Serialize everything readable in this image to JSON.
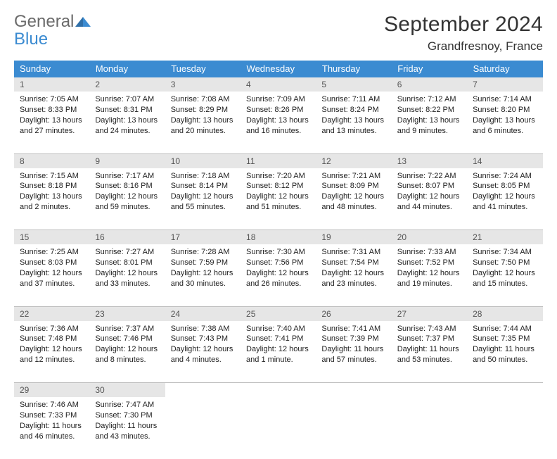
{
  "logo": {
    "line1": "General",
    "line2": "Blue"
  },
  "title": "September 2024",
  "location": "Grandfresnoy, France",
  "weekdays": [
    "Sunday",
    "Monday",
    "Tuesday",
    "Wednesday",
    "Thursday",
    "Friday",
    "Saturday"
  ],
  "colors": {
    "header_bg": "#3b8bd1",
    "header_fg": "#ffffff",
    "daynum_bg": "#e6e6e6",
    "grid_line": "#bfbfbf",
    "text": "#222222",
    "page_bg": "#ffffff"
  },
  "typography": {
    "title_pt": 30,
    "location_pt": 17,
    "weekday_pt": 13,
    "daynum_pt": 12,
    "body_pt": 11,
    "font_family": "Arial"
  },
  "layout": {
    "cols": 7,
    "rows": 5,
    "first_weekday_index": 0,
    "trailing_empty_cells": 5
  },
  "days": [
    {
      "n": 1,
      "sunrise": "7:05 AM",
      "sunset": "8:33 PM",
      "daylight": "13 hours and 27 minutes."
    },
    {
      "n": 2,
      "sunrise": "7:07 AM",
      "sunset": "8:31 PM",
      "daylight": "13 hours and 24 minutes."
    },
    {
      "n": 3,
      "sunrise": "7:08 AM",
      "sunset": "8:29 PM",
      "daylight": "13 hours and 20 minutes."
    },
    {
      "n": 4,
      "sunrise": "7:09 AM",
      "sunset": "8:26 PM",
      "daylight": "13 hours and 16 minutes."
    },
    {
      "n": 5,
      "sunrise": "7:11 AM",
      "sunset": "8:24 PM",
      "daylight": "13 hours and 13 minutes."
    },
    {
      "n": 6,
      "sunrise": "7:12 AM",
      "sunset": "8:22 PM",
      "daylight": "13 hours and 9 minutes."
    },
    {
      "n": 7,
      "sunrise": "7:14 AM",
      "sunset": "8:20 PM",
      "daylight": "13 hours and 6 minutes."
    },
    {
      "n": 8,
      "sunrise": "7:15 AM",
      "sunset": "8:18 PM",
      "daylight": "13 hours and 2 minutes."
    },
    {
      "n": 9,
      "sunrise": "7:17 AM",
      "sunset": "8:16 PM",
      "daylight": "12 hours and 59 minutes."
    },
    {
      "n": 10,
      "sunrise": "7:18 AM",
      "sunset": "8:14 PM",
      "daylight": "12 hours and 55 minutes."
    },
    {
      "n": 11,
      "sunrise": "7:20 AM",
      "sunset": "8:12 PM",
      "daylight": "12 hours and 51 minutes."
    },
    {
      "n": 12,
      "sunrise": "7:21 AM",
      "sunset": "8:09 PM",
      "daylight": "12 hours and 48 minutes."
    },
    {
      "n": 13,
      "sunrise": "7:22 AM",
      "sunset": "8:07 PM",
      "daylight": "12 hours and 44 minutes."
    },
    {
      "n": 14,
      "sunrise": "7:24 AM",
      "sunset": "8:05 PM",
      "daylight": "12 hours and 41 minutes."
    },
    {
      "n": 15,
      "sunrise": "7:25 AM",
      "sunset": "8:03 PM",
      "daylight": "12 hours and 37 minutes."
    },
    {
      "n": 16,
      "sunrise": "7:27 AM",
      "sunset": "8:01 PM",
      "daylight": "12 hours and 33 minutes."
    },
    {
      "n": 17,
      "sunrise": "7:28 AM",
      "sunset": "7:59 PM",
      "daylight": "12 hours and 30 minutes."
    },
    {
      "n": 18,
      "sunrise": "7:30 AM",
      "sunset": "7:56 PM",
      "daylight": "12 hours and 26 minutes."
    },
    {
      "n": 19,
      "sunrise": "7:31 AM",
      "sunset": "7:54 PM",
      "daylight": "12 hours and 23 minutes."
    },
    {
      "n": 20,
      "sunrise": "7:33 AM",
      "sunset": "7:52 PM",
      "daylight": "12 hours and 19 minutes."
    },
    {
      "n": 21,
      "sunrise": "7:34 AM",
      "sunset": "7:50 PM",
      "daylight": "12 hours and 15 minutes."
    },
    {
      "n": 22,
      "sunrise": "7:36 AM",
      "sunset": "7:48 PM",
      "daylight": "12 hours and 12 minutes."
    },
    {
      "n": 23,
      "sunrise": "7:37 AM",
      "sunset": "7:46 PM",
      "daylight": "12 hours and 8 minutes."
    },
    {
      "n": 24,
      "sunrise": "7:38 AM",
      "sunset": "7:43 PM",
      "daylight": "12 hours and 4 minutes."
    },
    {
      "n": 25,
      "sunrise": "7:40 AM",
      "sunset": "7:41 PM",
      "daylight": "12 hours and 1 minute."
    },
    {
      "n": 26,
      "sunrise": "7:41 AM",
      "sunset": "7:39 PM",
      "daylight": "11 hours and 57 minutes."
    },
    {
      "n": 27,
      "sunrise": "7:43 AM",
      "sunset": "7:37 PM",
      "daylight": "11 hours and 53 minutes."
    },
    {
      "n": 28,
      "sunrise": "7:44 AM",
      "sunset": "7:35 PM",
      "daylight": "11 hours and 50 minutes."
    },
    {
      "n": 29,
      "sunrise": "7:46 AM",
      "sunset": "7:33 PM",
      "daylight": "11 hours and 46 minutes."
    },
    {
      "n": 30,
      "sunrise": "7:47 AM",
      "sunset": "7:30 PM",
      "daylight": "11 hours and 43 minutes."
    }
  ],
  "labels": {
    "sunrise": "Sunrise:",
    "sunset": "Sunset:",
    "daylight": "Daylight:"
  }
}
